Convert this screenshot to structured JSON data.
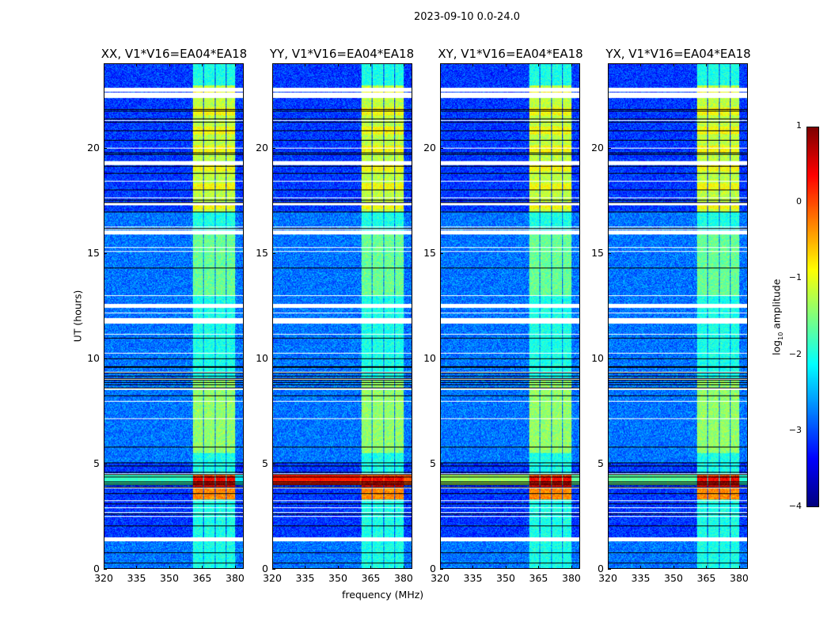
{
  "chart_data": {
    "type": "heatmap",
    "suptitle": "2023-09-10 0.0-24.0",
    "xlabel": "frequency (MHz)",
    "ylabel": "UT (hours)",
    "xlim": [
      320,
      384
    ],
    "ylim": [
      0,
      24
    ],
    "xticks": [
      "320",
      "335",
      "350",
      "365",
      "380"
    ],
    "yticks": [
      "0",
      "5",
      "10",
      "15",
      "20"
    ],
    "panels": [
      {
        "title": "XX, V1*V16=EA04*EA18",
        "rfi_4h_level": -2.0
      },
      {
        "title": "YY, V1*V16=EA04*EA18",
        "rfi_4h_level": 0.1
      },
      {
        "title": "XY, V1*V16=EA04*EA18",
        "rfi_4h_level": -1.5
      },
      {
        "title": "YX, V1*V16=EA04*EA18",
        "rfi_4h_level": -1.8
      }
    ],
    "bright_subbands_mhz": [
      [
        360.5,
        365.5
      ],
      [
        365.8,
        370.8
      ],
      [
        371.0,
        375.8
      ],
      [
        376.2,
        380.2
      ]
    ],
    "flagged_hours": [
      1.4,
      11.8,
      12.5,
      16.0,
      19.3,
      22.5,
      22.8
    ],
    "colorbar": {
      "label": "log10 amplitude",
      "label_main": "log",
      "label_sub": "10",
      "label_rest": " amplitude",
      "range": [
        -4,
        1
      ],
      "ticks": [
        "1",
        "0",
        "−1",
        "−2",
        "−3",
        "−4"
      ],
      "colormap": "jet"
    }
  }
}
